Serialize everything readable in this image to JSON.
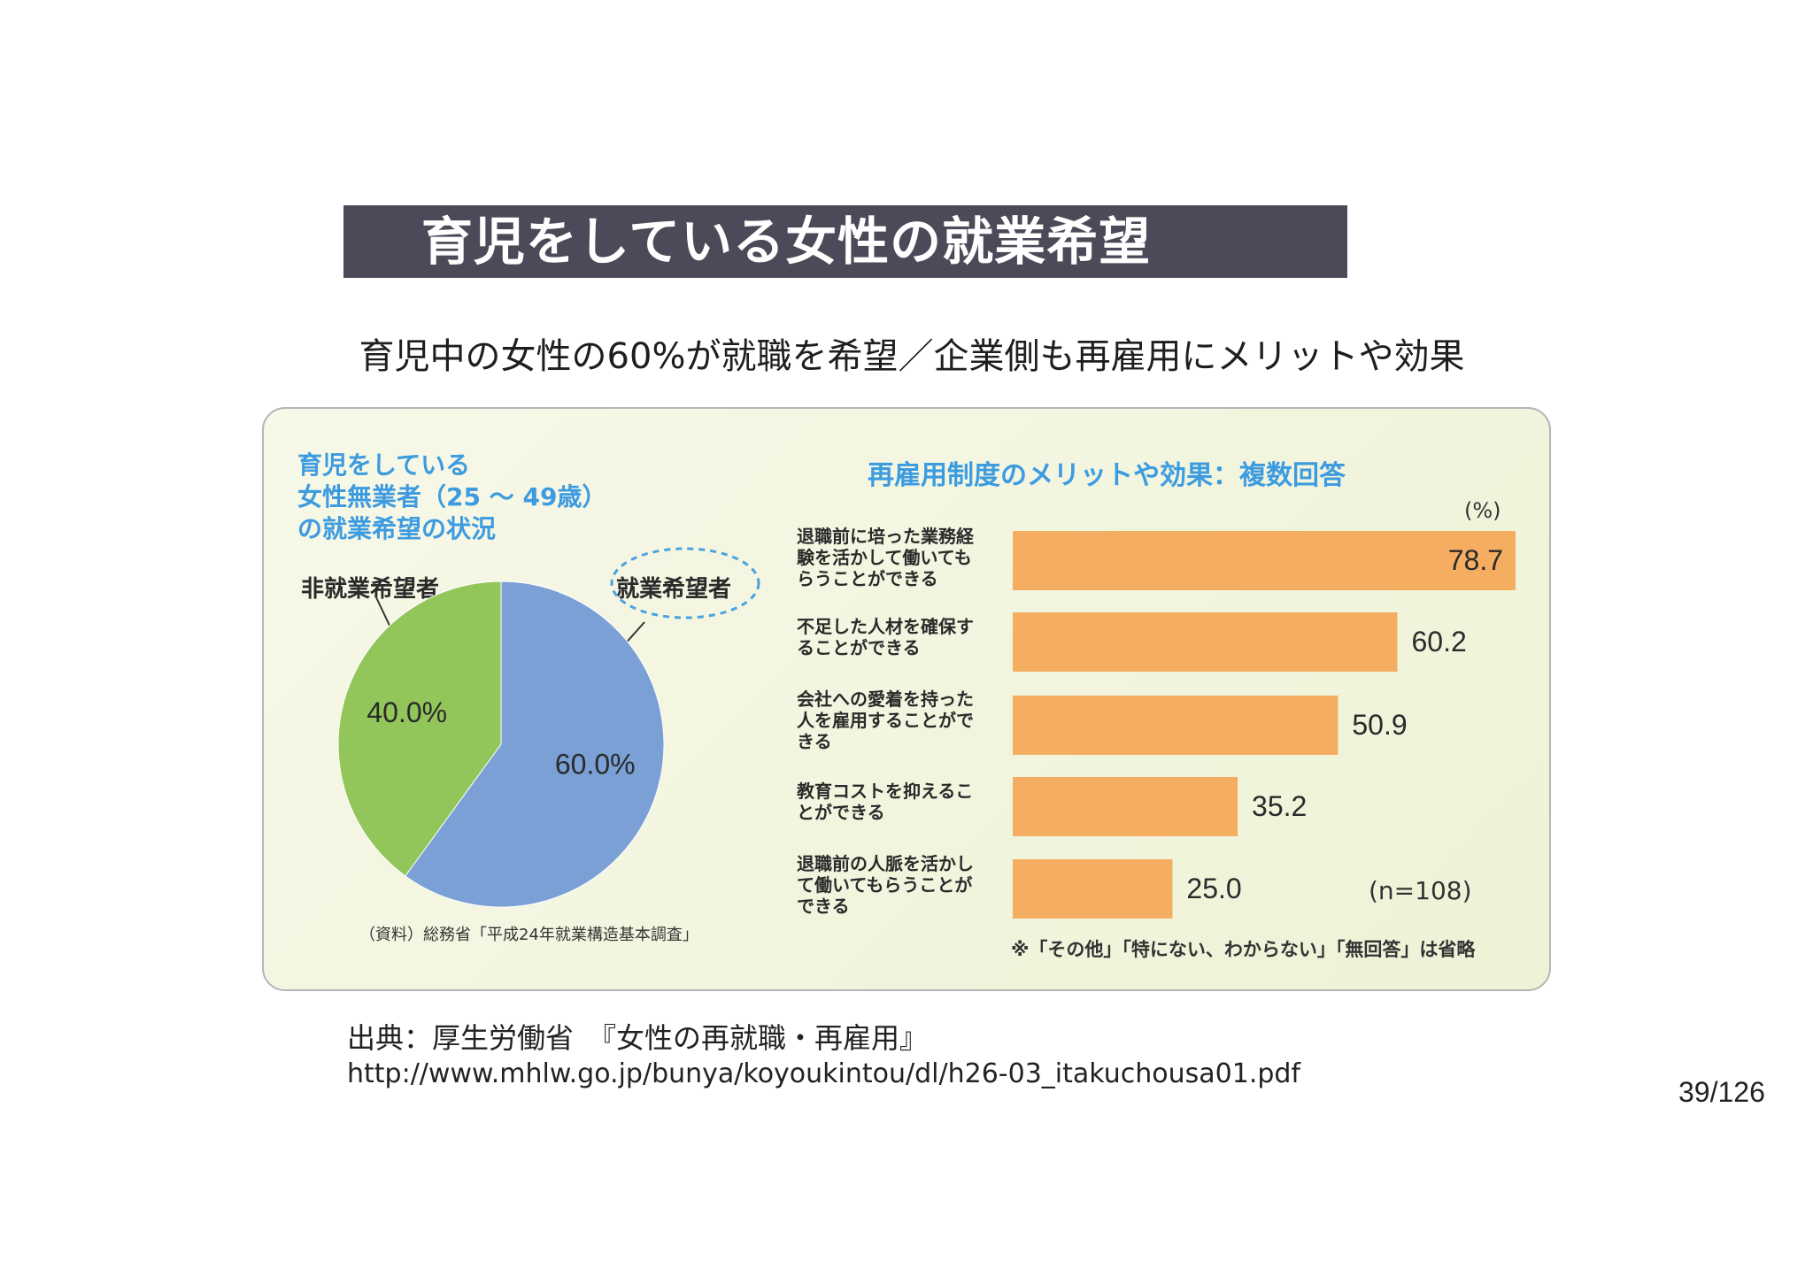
{
  "title": "育児をしている女性の就業希望",
  "subtitle": "育児中の女性の60%が就職を希望／企業側も再雇用にメリットや効果",
  "pie": {
    "title_lines": [
      "育児をしている",
      "女性無業者（25 ～ 49歳）",
      "の就業希望の状況"
    ],
    "label_nonjob": "非就業希望者",
    "label_job": "就業希望者",
    "source": "（資料）総務省「平成24年就業構造基本調査」"
  },
  "bars": {
    "title": "再雇用制度のメリットや効果：複数回答",
    "unit": "(%)",
    "n_note": "(n=108)",
    "omit_note": "※「その他」「特にない、わからない」「無回答」は省略"
  },
  "chart_data": [
    {
      "type": "pie",
      "title": "育児をしている女性無業者（25 ～ 49歳）の就業希望の状況",
      "slices": [
        {
          "label": "就業希望者",
          "value": 60.0,
          "display": "60.0%",
          "color": "#7aa0d6"
        },
        {
          "label": "非就業希望者",
          "value": 40.0,
          "display": "40.0%",
          "color": "#92c65a"
        }
      ]
    },
    {
      "type": "bar",
      "orientation": "horizontal",
      "title": "再雇用制度のメリットや効果：複数回答",
      "unit": "(%)",
      "xlim": [
        0,
        78.7
      ],
      "color": "#f5ad62",
      "categories": [
        [
          "退職前に培った業務経",
          "験を活かして働いても",
          "らうことができる"
        ],
        [
          "不足した人材を確保す",
          "ることができる"
        ],
        [
          "会社への愛着を持った",
          "人を雇用することがで",
          "きる"
        ],
        [
          "教育コストを抑えるこ",
          "とができる"
        ],
        [
          "退職前の人脈を活かし",
          "て働いてもらうことが",
          "できる"
        ]
      ],
      "values": [
        78.7,
        60.2,
        50.9,
        35.2,
        25.0
      ],
      "labels": [
        "78.7",
        "60.2",
        "50.9",
        "35.2",
        "25.0"
      ]
    }
  ],
  "footer": {
    "source_line1": "出典：厚生労働省　『女性の再就職・再雇用』",
    "source_line2": "http://www.mhlw.go.jp/bunya/koyoukintou/dl/h26-03_itakuchousa01.pdf",
    "page": "39/126"
  }
}
